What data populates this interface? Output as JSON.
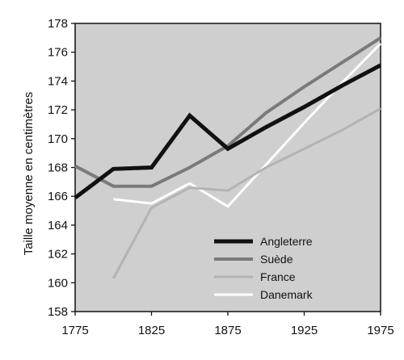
{
  "chart_data": {
    "type": "line",
    "title": "",
    "xlabel": "",
    "ylabel": "Taille moyenne en centimètres",
    "xlim": [
      1775,
      1975
    ],
    "ylim": [
      158,
      178
    ],
    "x_ticks": [
      1775,
      1825,
      1875,
      1925,
      1975
    ],
    "y_ticks": [
      158,
      160,
      162,
      164,
      166,
      168,
      170,
      172,
      174,
      176,
      178
    ],
    "grid": false,
    "legend_position": "lower-right",
    "series": [
      {
        "name": "Angleterre",
        "color": "#111111",
        "points": [
          [
            1775,
            165.9
          ],
          [
            1800,
            167.9
          ],
          [
            1825,
            168.0
          ],
          [
            1850,
            171.6
          ],
          [
            1875,
            169.3
          ],
          [
            1900,
            170.8
          ],
          [
            1925,
            172.2
          ],
          [
            1950,
            173.7
          ],
          [
            1975,
            175.1
          ]
        ]
      },
      {
        "name": "Suède",
        "color": "#7a7a7a",
        "points": [
          [
            1775,
            168.1
          ],
          [
            1800,
            166.7
          ],
          [
            1825,
            166.7
          ],
          [
            1850,
            168.0
          ],
          [
            1875,
            169.5
          ],
          [
            1900,
            171.8
          ],
          [
            1925,
            173.6
          ],
          [
            1950,
            175.3
          ],
          [
            1975,
            177.0
          ]
        ]
      },
      {
        "name": "France",
        "color": "#b3b3b3",
        "points": [
          [
            1800,
            160.3
          ],
          [
            1825,
            165.2
          ],
          [
            1850,
            166.6
          ],
          [
            1875,
            166.4
          ],
          [
            1900,
            168.0
          ],
          [
            1925,
            169.3
          ],
          [
            1950,
            170.6
          ],
          [
            1975,
            172.1
          ]
        ]
      },
      {
        "name": "Danemark",
        "color": "#ffffff",
        "points": [
          [
            1800,
            165.8
          ],
          [
            1825,
            165.5
          ],
          [
            1850,
            166.9
          ],
          [
            1875,
            165.3
          ],
          [
            1900,
            168.2
          ],
          [
            1925,
            171.1
          ],
          [
            1950,
            173.9
          ],
          [
            1975,
            176.6
          ]
        ]
      }
    ]
  }
}
